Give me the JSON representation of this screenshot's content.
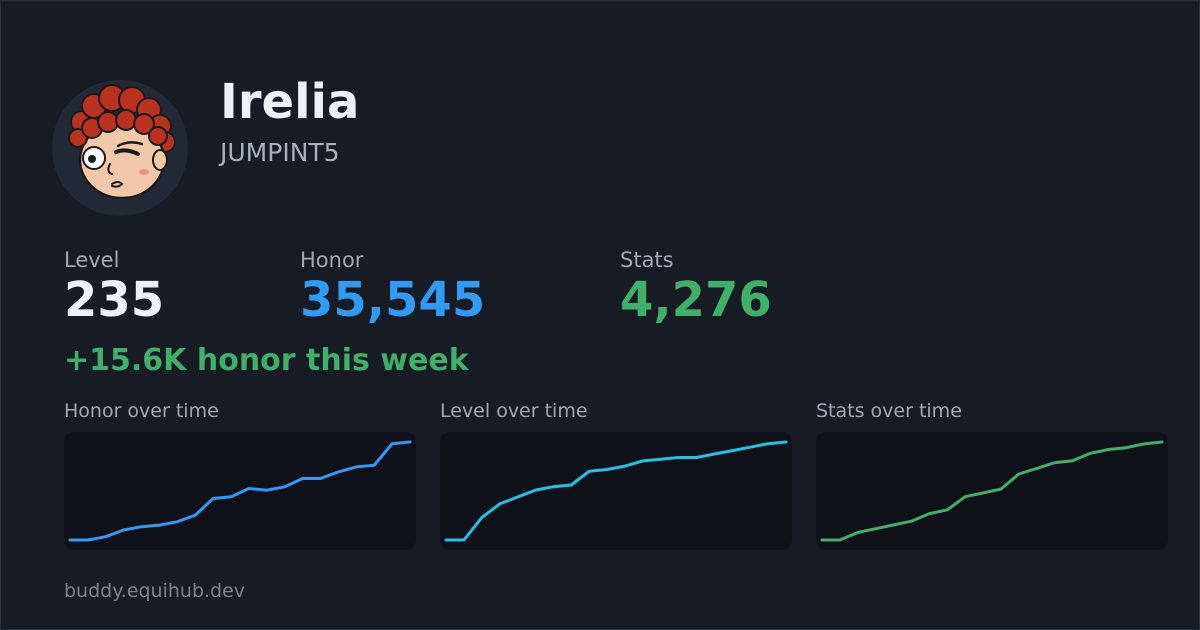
{
  "profile": {
    "name": "Irelia",
    "handle": "JUMPINT5",
    "avatar_icon": "cartoon-face-avatar"
  },
  "stats": [
    {
      "label": "Level",
      "value": "235",
      "color": "#eef1f7"
    },
    {
      "label": "Honor",
      "value": "35,545",
      "color": "#2f9bf5"
    },
    {
      "label": "Stats",
      "value": "4,276",
      "color": "#3fb06a"
    }
  ],
  "weekly_gain": "+15.6K honor this week",
  "footer": "buddy.equihub.dev",
  "chart_data": [
    {
      "type": "line",
      "title": "Honor over time",
      "color": "#2f9bf5",
      "values": [
        0,
        0,
        2,
        6,
        8,
        9,
        11,
        15,
        25,
        26,
        31,
        30,
        32,
        37,
        37,
        41,
        44,
        45,
        58,
        59
      ]
    },
    {
      "type": "line",
      "title": "Level over time",
      "color": "#22c3e0",
      "values": [
        0,
        0,
        13,
        21,
        25,
        29,
        31,
        32,
        40,
        41,
        43,
        46,
        47,
        48,
        48,
        50,
        52,
        54,
        56,
        57
      ]
    },
    {
      "type": "line",
      "title": "Stats over time",
      "color": "#3fb06a",
      "values": [
        0,
        0,
        4,
        6,
        8,
        10,
        14,
        16,
        23,
        25,
        27,
        35,
        38,
        41,
        42,
        46,
        48,
        49,
        51,
        52
      ]
    }
  ]
}
